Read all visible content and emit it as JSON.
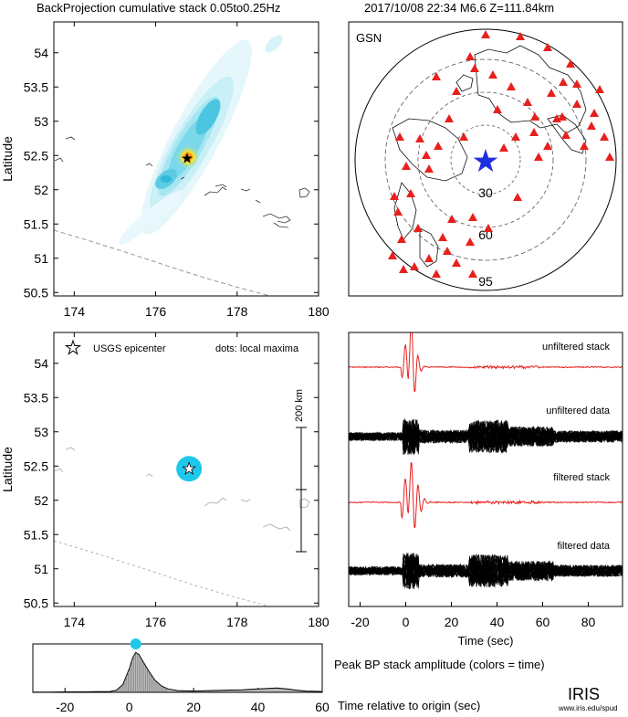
{
  "header": {
    "title": "BackProjection cumulative stack 0.05to0.25Hz",
    "event": "2017/10/08 22:34   M6.6   Z=111.84km"
  },
  "colors": {
    "stack": "#e8201c",
    "data": "#000000",
    "station": "#e8201c",
    "epicenter_star": "#1f2fe0",
    "maxima": "#1ec8ea",
    "grid": "#c9c9c9",
    "coast": "#333333",
    "trench": "#9a9a9a"
  },
  "icons": {
    "station": "red-triangle-icon",
    "epicenter": "star-icon",
    "maximum": "cyan-dot-icon"
  },
  "chart_data": [
    {
      "id": "bp-map",
      "type": "heatmap",
      "title": "",
      "xlabel": "",
      "ylabel": "Latitude",
      "xlim": [
        173.5,
        180
      ],
      "ylim": [
        50.45,
        54.45
      ],
      "x_ticks": [
        "174",
        "176",
        "178",
        "180"
      ],
      "y_ticks": [
        "50.5",
        "51",
        "51.5",
        "52",
        "52.5",
        "53",
        "53.5",
        "54"
      ],
      "epicenter": {
        "lon": 176.85,
        "lat": 52.47
      },
      "peak": {
        "lon": 176.9,
        "lat": 52.5
      },
      "grid": false
    },
    {
      "id": "station-map",
      "type": "scatter",
      "title": "GSN",
      "distance_ring_labels": [
        "30",
        "60",
        "95"
      ],
      "epicenter": "blue star at map center",
      "stations": "red triangles"
    },
    {
      "id": "maxima-map",
      "type": "scatter",
      "xlabel": "",
      "ylabel": "Latitude",
      "xlim": [
        173.5,
        180
      ],
      "ylim": [
        50.45,
        54.45
      ],
      "x_ticks": [
        "174",
        "176",
        "178",
        "180"
      ],
      "y_ticks": [
        "50.5",
        "51",
        "51.5",
        "52",
        "52.5",
        "53",
        "53.5",
        "54"
      ],
      "legend": {
        "epicenter": "USGS epicenter",
        "dots": "dots: local maxima"
      },
      "scale_bar": {
        "label": "200 km"
      },
      "points": [
        {
          "lon": 176.82,
          "lat": 52.46,
          "time_s": 2
        }
      ],
      "grid": false
    },
    {
      "id": "seismograms",
      "type": "line",
      "xlabel": "Time (sec)",
      "xlim": [
        -25,
        95
      ],
      "x_ticks": [
        "-20",
        "0",
        "20",
        "40",
        "60",
        "80"
      ],
      "series": [
        {
          "name": "unfiltered stack"
        },
        {
          "name": "unfiltered data"
        },
        {
          "name": "filtered stack"
        },
        {
          "name": "filtered data"
        }
      ],
      "grid": false
    },
    {
      "id": "peak-amplitude",
      "type": "area",
      "title": "Peak BP stack amplitude (colors = time)",
      "xlabel": "Time relative to origin (sec)",
      "xlim": [
        -30,
        60
      ],
      "x_ticks": [
        "-20",
        "0",
        "20",
        "40",
        "60"
      ],
      "x": [
        -30,
        -25,
        -20,
        -15,
        -10,
        -6,
        -4,
        -2,
        0,
        1,
        2,
        3,
        4,
        6,
        8,
        10,
        12,
        15,
        20,
        25,
        30,
        35,
        40,
        43,
        46,
        49,
        52,
        55,
        60
      ],
      "y": [
        0.005,
        0.005,
        0.01,
        0.01,
        0.015,
        0.02,
        0.05,
        0.18,
        0.55,
        0.8,
        0.93,
        0.88,
        0.75,
        0.5,
        0.28,
        0.15,
        0.08,
        0.04,
        0.03,
        0.04,
        0.05,
        0.06,
        0.08,
        0.09,
        0.1,
        0.08,
        0.05,
        0.03,
        0.02
      ],
      "peak_marker": {
        "time_s": 2
      }
    }
  ],
  "footer": {
    "logo": "IRIS",
    "url": "www.iris.edu/spud"
  }
}
